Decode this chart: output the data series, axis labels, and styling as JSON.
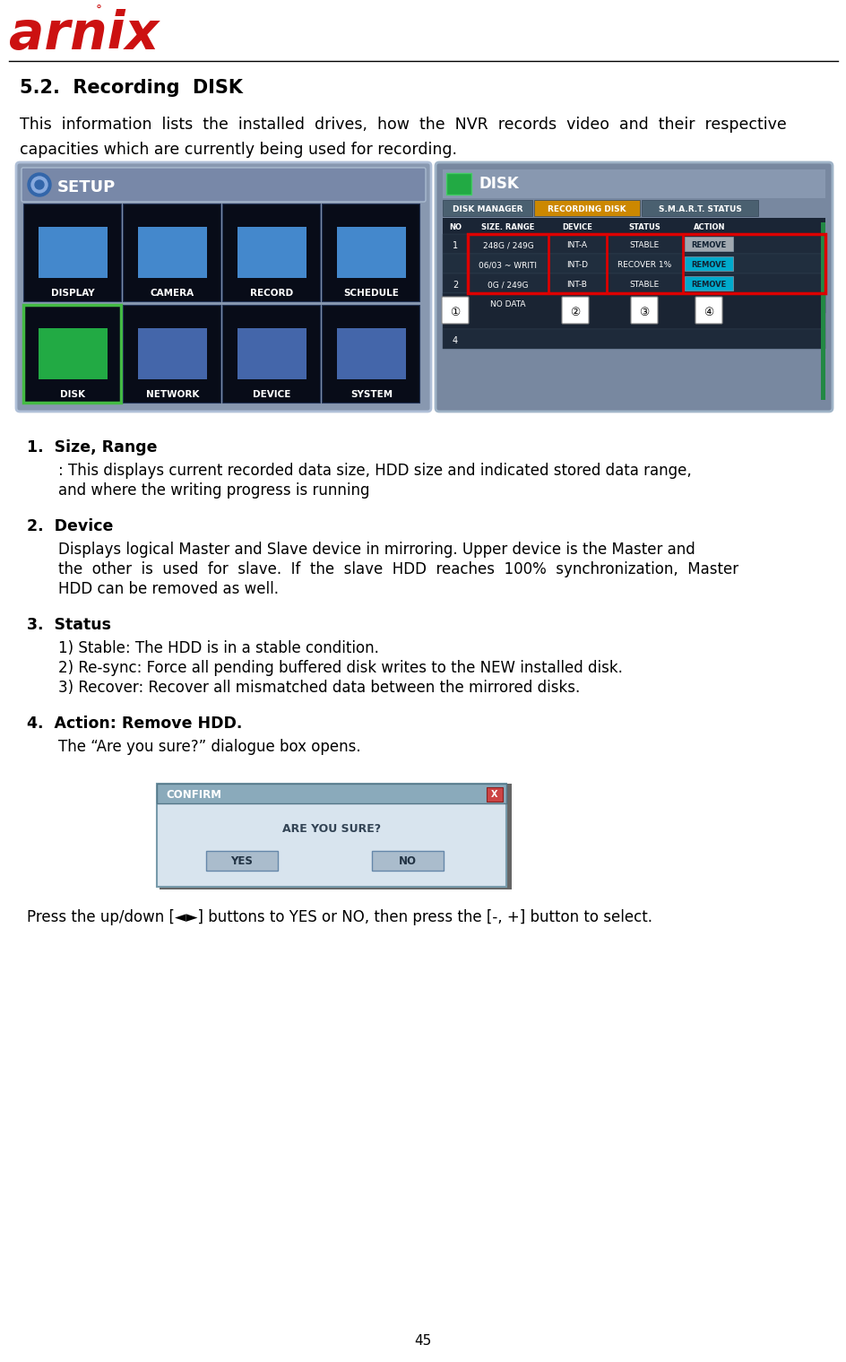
{
  "page_number": "45",
  "section_title": "5.2.  Recording  DISK",
  "bg_color": "#ffffff",
  "logo_color": "#cc1111",
  "intro_line1": "This  information  lists  the  installed  drives,  how  the  NVR  records  video  and  their  respective",
  "intro_line2": "capacities which are currently being used for recording.",
  "items": [
    {
      "number": "1.",
      "title": "Size, Range",
      "body_lines": [
        ": This displays current recorded data size, HDD size and indicated stored data range,",
        "and where the writing progress is running"
      ]
    },
    {
      "number": "2.",
      "title": "Device",
      "body_lines": [
        "Displays logical Master and Slave device in mirroring. Upper device is the Master and",
        "the  other  is  used  for  slave.  If  the  slave  HDD  reaches  100%  synchronization,  Master",
        "HDD can be removed as well."
      ]
    },
    {
      "number": "3.",
      "title": "Status",
      "body_lines": [
        "1) Stable: The HDD is in a stable condition.",
        "2) Re-sync: Force all pending buffered disk writes to the NEW installed disk.",
        "3) Recover: Recover all mismatched data between the mirrored disks."
      ]
    },
    {
      "number": "4.",
      "title": "Action: Remove HDD.",
      "body_lines": [
        "The “Are you sure?” dialogue box opens."
      ]
    }
  ],
  "last_paragraph": "Press the up/down [◄►] buttons to YES or NO, then press the [-, +] button to select.",
  "icon_names_top": [
    "DISPLAY",
    "CAMERA",
    "RECORD",
    "SCHEDULE"
  ],
  "icon_names_bot": [
    "DISK",
    "NETWORK",
    "DEVICE",
    "SYSTEM"
  ],
  "tab_names": [
    "DISK MANAGER",
    "RECORDING DISK",
    "S.M.A.R.T. STATUS"
  ],
  "table_headers": [
    "NO",
    "SIZE. RANGE",
    "DEVICE",
    "STATUS",
    "ACTION"
  ],
  "table_rows": [
    {
      "no": "1",
      "size": "248G / 249G",
      "device": "INT-A",
      "status": "STABLE",
      "action": "REMOVE",
      "action_color": "#c8c8c8"
    },
    {
      "no": "",
      "size": "06/03 ~ WRITI",
      "device": "INT-D",
      "status": "RECOVER 1%",
      "action": "REMOVE",
      "action_color": "#00aacc"
    },
    {
      "no": "2",
      "size": "0G / 249G",
      "device": "INT-B",
      "status": "STABLE",
      "action": "REMOVE",
      "action_color": "#00aacc"
    },
    {
      "no": "",
      "size": "NO DATA",
      "device": "",
      "status": "",
      "action": "",
      "action_color": "none"
    }
  ],
  "callouts": [
    "①",
    "②",
    "③",
    "④"
  ],
  "setup_bg": "#7a8ea8",
  "disk_bg": "#6a7e98",
  "table_bg_dark": "#1e2a3a",
  "table_bg_mid": "#253040",
  "tab_active_color": "#cc8800",
  "tab_inactive_color": "#4a6070"
}
